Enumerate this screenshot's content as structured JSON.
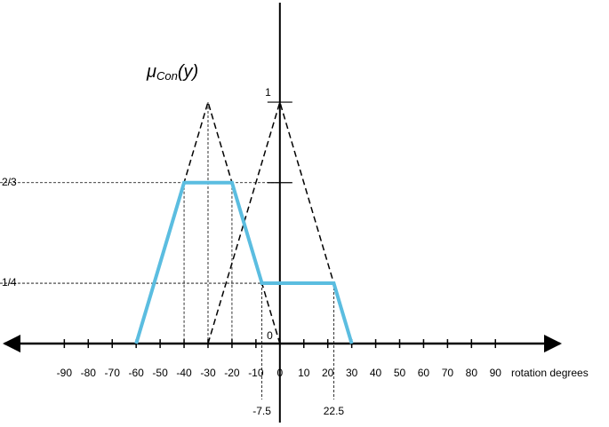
{
  "chart_data": {
    "type": "line",
    "title": {
      "symbol": "μ",
      "subscript": "Con",
      "argument": "(y)"
    },
    "xlabel": "rotation degrees",
    "xlim": [
      -115,
      117
    ],
    "ylim": [
      -0.327,
      1.423
    ],
    "xticks": [
      -90,
      -80,
      -70,
      -60,
      -50,
      -40,
      -30,
      -20,
      -10,
      0,
      10,
      20,
      30,
      40,
      50,
      60,
      70,
      80,
      90
    ],
    "extra_xticks": [
      -7.5,
      22.5
    ],
    "yticks": [
      0,
      {
        "value": 0.25,
        "label": "1/4"
      },
      {
        "value": 0.6667,
        "label": "2/3"
      },
      1
    ],
    "series": [
      {
        "color": "#000000",
        "dashed": true,
        "x": [
          -60,
          -30,
          0
        ],
        "values": [
          0,
          1,
          0
        ]
      },
      {
        "color": "#000000",
        "dashed": true,
        "x": [
          -30,
          0,
          30
        ],
        "values": [
          0,
          1,
          0
        ]
      },
      {
        "color": "#5bbde0",
        "dashed": false,
        "x": [
          -60,
          -40,
          -20,
          -7.5,
          22.5,
          30
        ],
        "values": [
          0,
          0.6667,
          0.6667,
          0.25,
          0.25,
          0
        ]
      }
    ]
  }
}
